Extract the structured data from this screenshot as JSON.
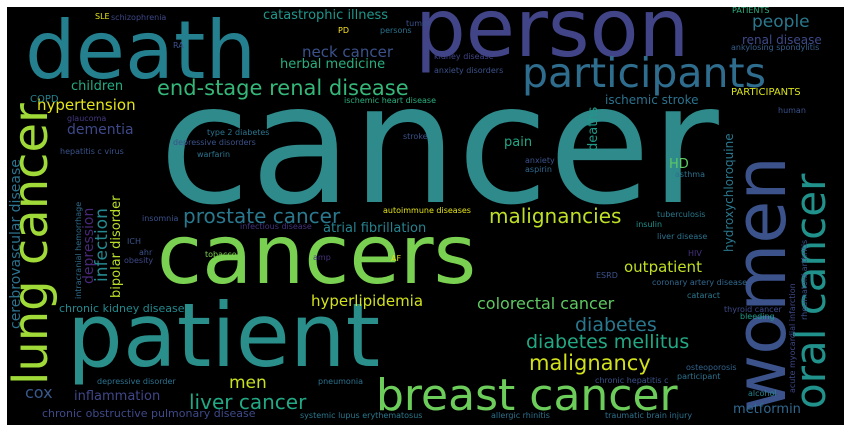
{
  "words": [
    {
      "text": "cancer",
      "color": "#2e8a8b",
      "vertical": false
    },
    {
      "text": "cancers",
      "color": "#7ad151",
      "vertical": false
    },
    {
      "text": "patient",
      "color": "#2a8f8b",
      "vertical": false
    },
    {
      "text": "death",
      "color": "#24808e",
      "vertical": false
    },
    {
      "text": "person",
      "color": "#414487",
      "vertical": false
    },
    {
      "text": "participants",
      "color": "#2f6d8e",
      "vertical": false
    },
    {
      "text": "breast cancer",
      "color": "#6ccd5a",
      "vertical": false
    },
    {
      "text": "women",
      "color": "#3b528b",
      "vertical": true
    },
    {
      "text": "oral cancer",
      "color": "#21918c",
      "vertical": true
    },
    {
      "text": "lung cancer",
      "color": "#a0da39",
      "vertical": true
    },
    {
      "text": "end-stage renal disease",
      "color": "#35b779",
      "vertical": false
    },
    {
      "text": "prostate cancer",
      "color": "#2a788e",
      "vertical": false
    },
    {
      "text": "malignancies",
      "color": "#bddf26",
      "vertical": false
    },
    {
      "text": "diabetes mellitus",
      "color": "#22a884",
      "vertical": false
    },
    {
      "text": "diabetes",
      "color": "#2a788e",
      "vertical": false
    },
    {
      "text": "malignancy",
      "color": "#d0e11c",
      "vertical": false
    },
    {
      "text": "liver cancer",
      "color": "#22a884",
      "vertical": false
    },
    {
      "text": "hyperlipidemia",
      "color": "#d2e21b",
      "vertical": false
    },
    {
      "text": "colorectal cancer",
      "color": "#5ec962",
      "vertical": false
    },
    {
      "text": "people",
      "color": "#2a788e",
      "vertical": false
    },
    {
      "text": "renal disease",
      "color": "#3e4a89",
      "vertical": false
    },
    {
      "text": "neck cancer",
      "color": "#3b528b",
      "vertical": false
    },
    {
      "text": "herbal medicine",
      "color": "#29af7f",
      "vertical": false
    },
    {
      "text": "catastrophic illness",
      "color": "#1f978b",
      "vertical": false
    },
    {
      "text": "hypertension",
      "color": "#e5e419",
      "vertical": false
    },
    {
      "text": "dementia",
      "color": "#3e4989",
      "vertical": false
    },
    {
      "text": "children",
      "color": "#25ab82",
      "vertical": false
    },
    {
      "text": "infection",
      "color": "#23898e",
      "vertical": true
    },
    {
      "text": "bipolar disorder",
      "color": "#b8de29",
      "vertical": true
    },
    {
      "text": "depression",
      "color": "#482878",
      "vertical": true
    },
    {
      "text": "cerebrovascular disease",
      "color": "#2c728e",
      "vertical": true
    },
    {
      "text": "outpatient",
      "color": "#c2df23",
      "vertical": false
    },
    {
      "text": "ischemic stroke",
      "color": "#2c728e",
      "vertical": false
    },
    {
      "text": "hydroxychloroquine",
      "color": "#2a788e",
      "vertical": true
    },
    {
      "text": "deaths",
      "color": "#1f9a8a",
      "vertical": true
    },
    {
      "text": "HD",
      "color": "#5ec962",
      "vertical": false
    },
    {
      "text": "pain",
      "color": "#22a785",
      "vertical": false
    },
    {
      "text": "men",
      "color": "#c8e020",
      "vertical": false
    },
    {
      "text": "cox",
      "color": "#38598c",
      "vertical": false
    },
    {
      "text": "inflammation",
      "color": "#3f4788",
      "vertical": false
    },
    {
      "text": "metformin",
      "color": "#31688e",
      "vertical": false
    },
    {
      "text": "chronic kidney disease",
      "color": "#23898e",
      "vertical": false
    },
    {
      "text": "chronic obstructive pulmonary disease",
      "color": "#3e4a89",
      "vertical": false
    },
    {
      "text": "atrial fibrillation",
      "color": "#26828e",
      "vertical": false
    },
    {
      "text": "PARTICIPANTS",
      "color": "#d8e219",
      "vertical": false
    },
    {
      "text": "COPD",
      "color": "#26828e",
      "vertical": false
    },
    {
      "text": "glaucoma",
      "color": "#443983",
      "vertical": false
    },
    {
      "text": "hepatitis c virus",
      "color": "#3a538b",
      "vertical": false
    },
    {
      "text": "type 2 diabetes",
      "color": "#2b748e",
      "vertical": false
    },
    {
      "text": "depressive disorders",
      "color": "#3b528b",
      "vertical": false
    },
    {
      "text": "warfarin",
      "color": "#2b748e",
      "vertical": false
    },
    {
      "text": "ischemic heart disease",
      "color": "#29af7f",
      "vertical": false
    },
    {
      "text": "stroke",
      "color": "#3b528b",
      "vertical": false
    },
    {
      "text": "anxiety",
      "color": "#3b528b",
      "vertical": false
    },
    {
      "text": "aspirin",
      "color": "#31688e",
      "vertical": false
    },
    {
      "text": "asthma",
      "color": "#2c728e",
      "vertical": false
    },
    {
      "text": "human",
      "color": "#3b528b",
      "vertical": false
    },
    {
      "text": "kidney disease",
      "color": "#414487",
      "vertical": false
    },
    {
      "text": "anxiety disorders",
      "color": "#3b528b",
      "vertical": false
    },
    {
      "text": "ankylosing spondylitis",
      "color": "#355f8d",
      "vertical": false
    },
    {
      "text": "tuberculosis",
      "color": "#2a788e",
      "vertical": false
    },
    {
      "text": "insulin",
      "color": "#21918c",
      "vertical": false
    },
    {
      "text": "liver disease",
      "color": "#2c728e",
      "vertical": false
    },
    {
      "text": "autoimmune diseases",
      "color": "#e5e419",
      "vertical": false
    },
    {
      "text": "infectious disease",
      "color": "#46327e",
      "vertical": false
    },
    {
      "text": "intracranial hemorrhage",
      "color": "#2f6c8e",
      "vertical": true
    },
    {
      "text": "insomnia",
      "color": "#3b528b",
      "vertical": false
    },
    {
      "text": "ICH",
      "color": "#3b528b",
      "vertical": false
    },
    {
      "text": "ahr",
      "color": "#3b528b",
      "vertical": false
    },
    {
      "text": "tobacco",
      "color": "#7fd34e",
      "vertical": false
    },
    {
      "text": "obesity",
      "color": "#3e4989",
      "vertical": false
    },
    {
      "text": "amp",
      "color": "#46327e",
      "vertical": false
    },
    {
      "text": "AF",
      "color": "#d8e219",
      "vertical": false
    },
    {
      "text": "ESRD",
      "color": "#3b528b",
      "vertical": false
    },
    {
      "text": "HIV",
      "color": "#46327e",
      "vertical": false
    },
    {
      "text": "coronary artery disease",
      "color": "#31688e",
      "vertical": false
    },
    {
      "text": "cataract",
      "color": "#2a788e",
      "vertical": false
    },
    {
      "text": "thyroid cancer",
      "color": "#3e4a89",
      "vertical": false
    },
    {
      "text": "bleeding",
      "color": "#1f9a8a",
      "vertical": false
    },
    {
      "text": "acute myocardial infarction",
      "color": "#3e4989",
      "vertical": true
    },
    {
      "text": "rheumatoid arthritis",
      "color": "#3b528b",
      "vertical": true
    },
    {
      "text": "osteoporosis",
      "color": "#33638d",
      "vertical": false
    },
    {
      "text": "participant",
      "color": "#2c728e",
      "vertical": false
    },
    {
      "text": "alcohol",
      "color": "#25848e",
      "vertical": false
    },
    {
      "text": "chronic hepatitis c",
      "color": "#3b528b",
      "vertical": false
    },
    {
      "text": "traumatic brain injury",
      "color": "#2c728e",
      "vertical": false
    },
    {
      "text": "allergic rhinitis",
      "color": "#2c728e",
      "vertical": false
    },
    {
      "text": "systemic lupus erythematosus",
      "color": "#2a788e",
      "vertical": false
    },
    {
      "text": "pneumonia",
      "color": "#2c728e",
      "vertical": false
    },
    {
      "text": "depressive disorder",
      "color": "#2c728e",
      "vertical": false
    },
    {
      "text": "SLE",
      "color": "#e5e419",
      "vertical": false
    },
    {
      "text": "schizophrenia",
      "color": "#3e4989",
      "vertical": false
    },
    {
      "text": "RA",
      "color": "#3b528b",
      "vertical": false
    },
    {
      "text": "PD",
      "color": "#fde725",
      "vertical": false
    },
    {
      "text": "persons",
      "color": "#2c728e",
      "vertical": false
    },
    {
      "text": "tumor",
      "color": "#3b528b",
      "vertical": false
    },
    {
      "text": "PATIENTS",
      "color": "#2ab07f",
      "vertical": false
    }
  ]
}
